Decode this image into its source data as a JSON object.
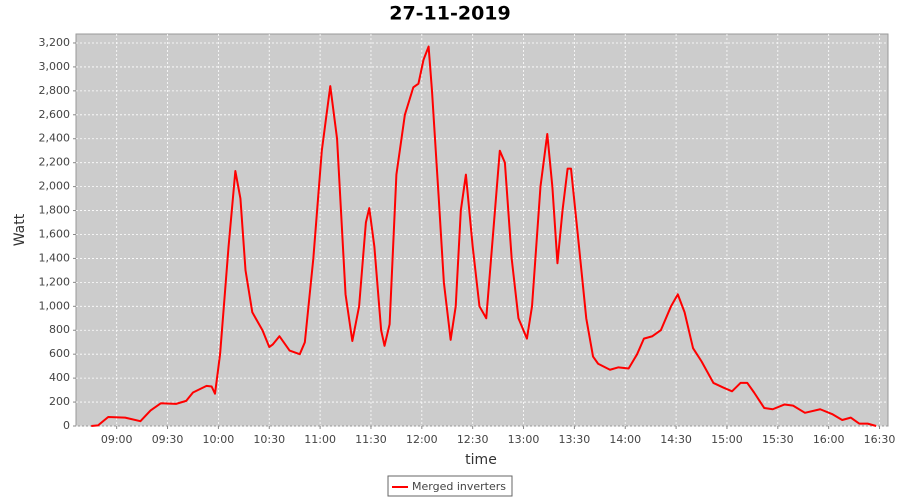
{
  "chart_data": {
    "type": "line",
    "title": "27-11-2019",
    "x_label": "time",
    "y_label": "Watt",
    "x": [
      "08:45",
      "08:49",
      "08:55",
      "09:05",
      "09:14",
      "09:20",
      "09:26",
      "09:35",
      "09:41",
      "09:45",
      "09:53",
      "09:56",
      "09:58",
      "10:01",
      "10:06",
      "10:10",
      "10:13",
      "10:16",
      "10:20",
      "10:26",
      "10:30",
      "10:32",
      "10:36",
      "10:42",
      "10:48",
      "10:51",
      "10:56",
      "11:01",
      "11:06",
      "11:10",
      "11:15",
      "11:19",
      "11:23",
      "11:27",
      "11:29",
      "11:32",
      "11:36",
      "11:38",
      "11:41",
      "11:45",
      "11:50",
      "11:55",
      "11:58",
      "12:01",
      "12:04",
      "12:06",
      "12:10",
      "12:13",
      "12:17",
      "12:20",
      "12:23",
      "12:26",
      "12:30",
      "12:34",
      "12:38",
      "12:42",
      "12:46",
      "12:49",
      "12:53",
      "12:57",
      "13:02",
      "13:05",
      "13:10",
      "13:14",
      "13:17",
      "13:20",
      "13:23",
      "13:26",
      "13:28",
      "13:32",
      "13:37",
      "13:41",
      "13:44",
      "13:51",
      "13:56",
      "14:02",
      "14:07",
      "14:11",
      "14:16",
      "14:21",
      "14:27",
      "14:31",
      "14:35",
      "14:40",
      "14:45",
      "14:52",
      "14:58",
      "15:03",
      "15:08",
      "15:12",
      "15:16",
      "15:22",
      "15:27",
      "15:34",
      "15:39",
      "15:46",
      "15:55",
      "16:02",
      "16:08",
      "16:13",
      "16:18",
      "16:23",
      "16:28"
    ],
    "series": [
      {
        "name": "Merged inverters",
        "color": "#ff0000",
        "values": [
          0,
          5,
          75,
          70,
          40,
          130,
          190,
          185,
          210,
          280,
          335,
          330,
          270,
          600,
          1500,
          2130,
          1900,
          1300,
          950,
          800,
          660,
          680,
          750,
          630,
          600,
          700,
          1400,
          2300,
          2840,
          2400,
          1100,
          710,
          1000,
          1700,
          1820,
          1500,
          800,
          670,
          850,
          2100,
          2600,
          2830,
          2860,
          3060,
          3170,
          2800,
          1900,
          1200,
          720,
          1000,
          1800,
          2100,
          1500,
          1000,
          900,
          1600,
          2300,
          2200,
          1400,
          900,
          730,
          1000,
          2000,
          2440,
          2000,
          1360,
          1800,
          2150,
          2150,
          1600,
          900,
          580,
          520,
          470,
          490,
          480,
          600,
          730,
          750,
          800,
          1000,
          1100,
          950,
          650,
          540,
          360,
          320,
          290,
          360,
          360,
          280,
          150,
          140,
          180,
          170,
          110,
          140,
          100,
          50,
          70,
          20,
          20,
          0
        ]
      }
    ],
    "xlim": [
      "08:36",
      "16:35"
    ],
    "xticks": [
      "09:00",
      "09:30",
      "10:00",
      "10:30",
      "11:00",
      "11:30",
      "12:00",
      "12:30",
      "13:00",
      "13:30",
      "14:00",
      "14:30",
      "15:00",
      "15:30",
      "16:00",
      "16:30"
    ],
    "ylim": [
      0,
      3275
    ],
    "yticks": [
      0,
      200,
      400,
      600,
      800,
      {
        "value": 1000,
        "label": "1,000"
      },
      {
        "value": 1200,
        "label": "1,200"
      },
      {
        "value": 1400,
        "label": "1,400"
      },
      {
        "value": 1600,
        "label": "1,600"
      },
      {
        "value": 1800,
        "label": "1,800"
      },
      {
        "value": 2000,
        "label": "2,000"
      },
      {
        "value": 2200,
        "label": "2,200"
      },
      {
        "value": 2400,
        "label": "2,400"
      },
      {
        "value": 2600,
        "label": "2,600"
      },
      {
        "value": 2800,
        "label": "2,800"
      },
      {
        "value": 3000,
        "label": "3,000"
      },
      {
        "value": 3200,
        "label": "3,200"
      }
    ],
    "grid": true,
    "legend": "bottom"
  }
}
